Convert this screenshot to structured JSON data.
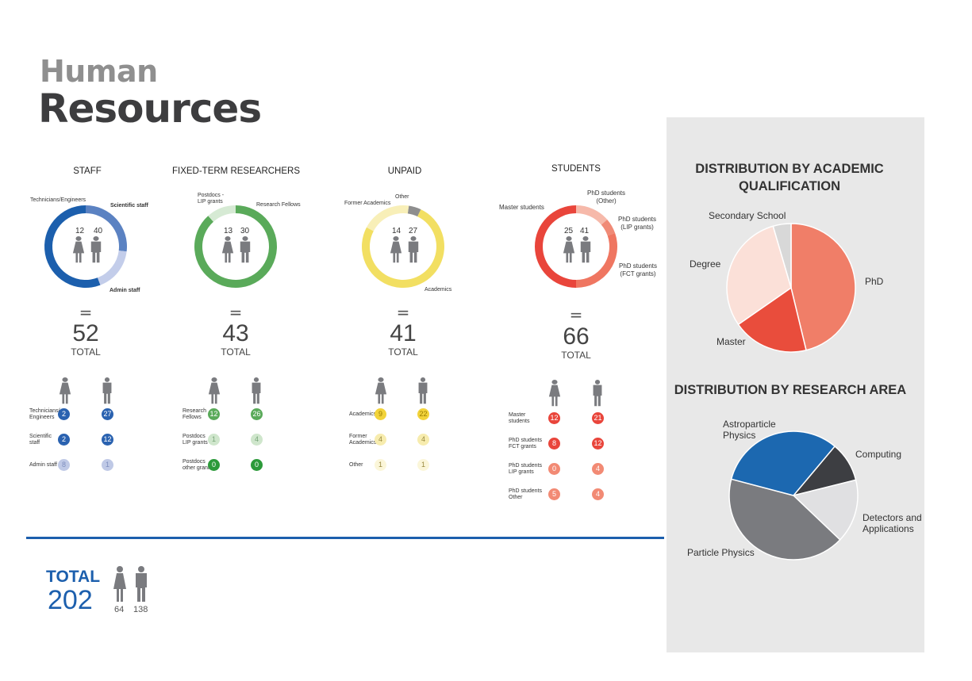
{
  "header": {
    "title_line1": "Human",
    "title_line2": "Resources"
  },
  "colors": {
    "blue": "#1c5fad",
    "green": "#5aaa5a",
    "yellow": "#f2df62",
    "red": "#e9453b",
    "gray": "#7a7b7f"
  },
  "chart_data": [
    {
      "type": "pie",
      "id": "staff",
      "title": "STAFF",
      "segments": [
        {
          "label": "Scientific staff",
          "value": 14
        },
        {
          "label": "Admin staff",
          "value": 9
        },
        {
          "label": "Technicians/Engineers",
          "value": 29
        }
      ],
      "female": 12,
      "male": 40,
      "total": 52,
      "table": [
        {
          "label": "Technicians/ Engineers",
          "female": 2,
          "male": 27
        },
        {
          "label": "Scientific staff",
          "female": 2,
          "male": 12
        },
        {
          "label": "Admin staff",
          "female": 8,
          "male": 1
        }
      ]
    },
    {
      "type": "pie",
      "id": "fixed",
      "title": "FIXED-TERM RESEARCHERS",
      "segments": [
        {
          "label": "Research Fellows",
          "value": 38
        },
        {
          "label": "Postdocs - LIP grants",
          "value": 5
        }
      ],
      "female": 13,
      "male": 30,
      "total": 43,
      "table": [
        {
          "label": "Research Fellows",
          "female": 12,
          "male": 26
        },
        {
          "label": "Postdocs LIP grants",
          "female": 1,
          "male": 4
        },
        {
          "label": "Postdocs other grants",
          "female": 0,
          "male": 0
        }
      ]
    },
    {
      "type": "pie",
      "id": "unpaid",
      "title": "UNPAID",
      "segments": [
        {
          "label": "Other",
          "value": 2
        },
        {
          "label": "Academics",
          "value": 31
        },
        {
          "label": "Former Academics",
          "value": 8
        }
      ],
      "female": 14,
      "male": 27,
      "total": 41,
      "table": [
        {
          "label": "Academics",
          "female": 9,
          "male": 22
        },
        {
          "label": "Former Academics",
          "female": 4,
          "male": 4
        },
        {
          "label": "Other",
          "female": 1,
          "male": 1
        }
      ]
    },
    {
      "type": "pie",
      "id": "students",
      "title": "STUDENTS",
      "segments": [
        {
          "label": "PhD students (Other)",
          "value": 9
        },
        {
          "label": "PhD students (LIP grants)",
          "value": 4
        },
        {
          "label": "PhD students (FCT grants)",
          "value": 20
        },
        {
          "label": "Master students",
          "value": 33
        }
      ],
      "female": 25,
      "male": 41,
      "total": 66,
      "table": [
        {
          "label": "Master students",
          "female": 12,
          "male": 21
        },
        {
          "label": "PhD students FCT grants",
          "female": 8,
          "male": 12
        },
        {
          "label": "PhD students LIP grants",
          "female": 0,
          "male": 4
        },
        {
          "label": "PhD students Other",
          "female": 5,
          "male": 4
        }
      ]
    },
    {
      "type": "pie",
      "id": "academic",
      "title": "DISTRIBUTION BY ACADEMIC QUALIFICATION",
      "segments": [
        {
          "label": "PhD",
          "value": 92
        },
        {
          "label": "Master",
          "value": 38
        },
        {
          "label": "Degree",
          "value": 60
        },
        {
          "label": "Secondary School",
          "value": 9
        }
      ]
    },
    {
      "type": "pie",
      "id": "area",
      "title": "DISTRIBUTION BY RESEARCH AREA",
      "segments": [
        {
          "label": "Computing",
          "value": 10
        },
        {
          "label": "Detectors and Applications",
          "value": 16
        },
        {
          "label": "Particle Physics",
          "value": 42
        },
        {
          "label": "Astroparticle Physics",
          "value": 32
        }
      ]
    }
  ],
  "labels": {
    "staff": [
      "Technicians/Engineers",
      "Scientific staff",
      "Admin staff"
    ],
    "fixed": [
      "Postdocs -",
      "LIP grants",
      "Research Fellows"
    ],
    "unpaid": [
      "Other",
      "Former Academics",
      "Academics"
    ],
    "students": [
      "Master students",
      "PhD students",
      "(Other)",
      "PhD students",
      "(LIP grants)",
      "PhD students",
      "(FCT grants)"
    ],
    "academic": [
      "Secondary School",
      "Degree",
      "PhD",
      "Master"
    ],
    "area": [
      "Astroparticle",
      "Physics",
      "Computing",
      "Detectors and",
      "Applications",
      "Particle Physics"
    ],
    "tables": {
      "staff": [
        [
          "Technicians/",
          "Engineers"
        ],
        [
          "Scientific",
          "staff"
        ],
        [
          "Admin staff"
        ]
      ],
      "fixed": [
        [
          "Research",
          "Fellows"
        ],
        [
          "Postdocs",
          "LIP grants"
        ],
        [
          "Postdocs",
          "other grants"
        ]
      ],
      "unpaid": [
        [
          "Academics"
        ],
        [
          "Former",
          "Academics"
        ],
        [
          "Other"
        ]
      ],
      "students": [
        [
          "Master",
          "students"
        ],
        [
          "PhD students",
          "FCT grants"
        ],
        [
          "PhD students",
          "LIP grants"
        ],
        [
          "PhD students",
          "Other"
        ]
      ]
    },
    "eq": "=",
    "total_word": "TOTAL"
  },
  "grand_total": {
    "label": "TOTAL",
    "value": "202",
    "female": "64",
    "male": "138"
  }
}
